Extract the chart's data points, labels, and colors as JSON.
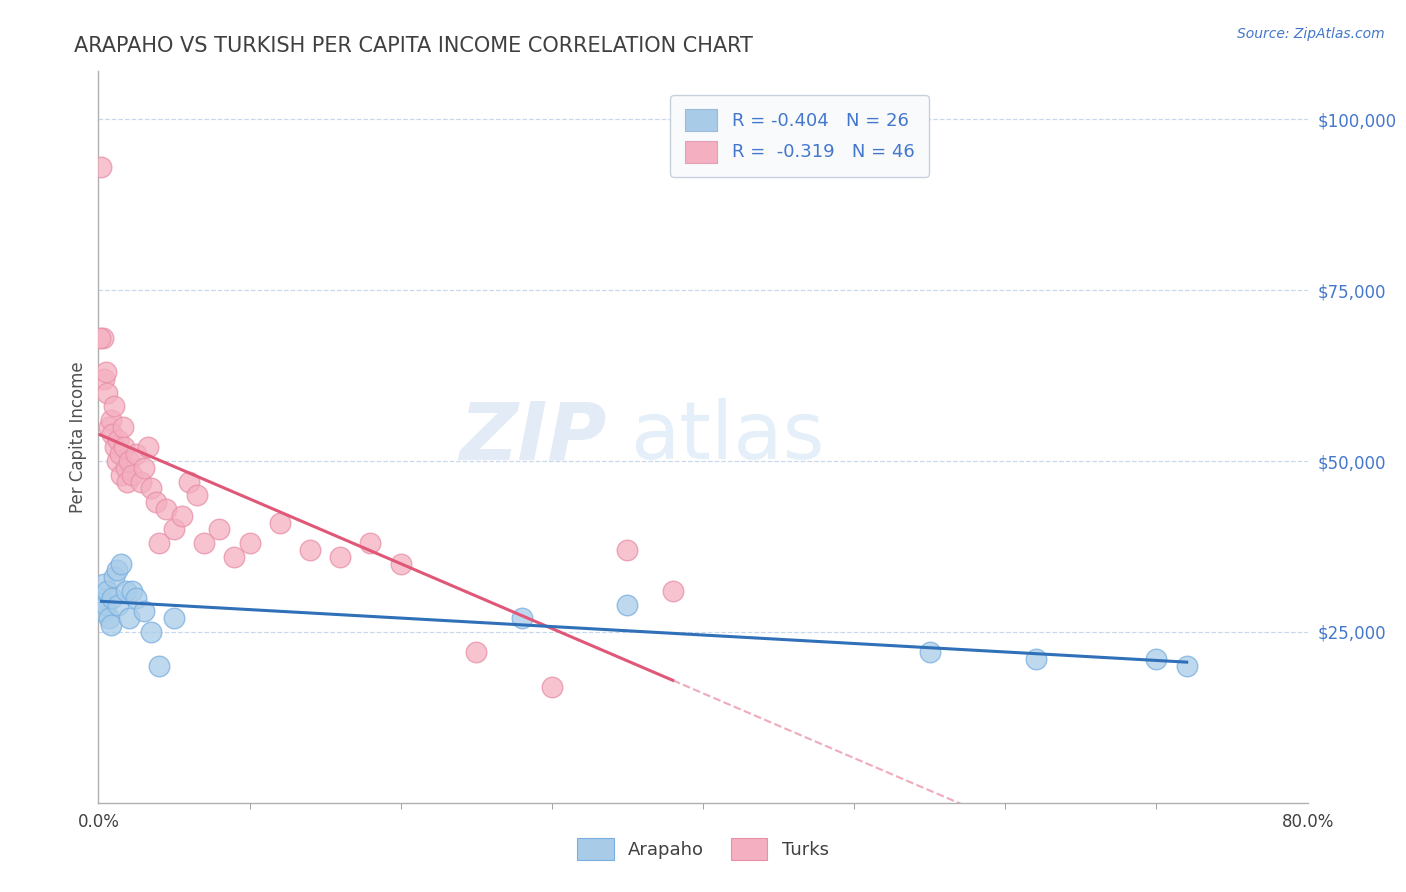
{
  "title": "ARAPAHO VS TURKISH PER CAPITA INCOME CORRELATION CHART",
  "source_text": "Source: ZipAtlas.com",
  "ylabel": "Per Capita Income",
  "xlabel": "",
  "xlim": [
    0.0,
    0.8
  ],
  "ylim": [
    0,
    107000
  ],
  "arapaho_color": "#a8cce8",
  "turks_color": "#f4afc0",
  "arapaho_edge_color": "#7aafe0",
  "turks_edge_color": "#e890a8",
  "arapaho_line_color": "#3070b8",
  "turks_line_color": "#e05878",
  "title_color": "#404040",
  "axis_color": "#4477cc",
  "background_color": "#ffffff",
  "grid_color": "#c8d8ec",
  "arapaho_x": [
    0.002,
    0.003,
    0.004,
    0.005,
    0.006,
    0.007,
    0.008,
    0.009,
    0.01,
    0.012,
    0.013,
    0.015,
    0.018,
    0.02,
    0.022,
    0.025,
    0.03,
    0.035,
    0.04,
    0.05,
    0.28,
    0.35,
    0.55,
    0.62,
    0.7,
    0.72
  ],
  "arapaho_y": [
    30000,
    28000,
    32000,
    29000,
    31000,
    27000,
    26000,
    30000,
    33000,
    34000,
    29000,
    35000,
    31000,
    27000,
    31000,
    30000,
    28000,
    25000,
    20000,
    27000,
    27000,
    29000,
    22000,
    21000,
    21000,
    20000
  ],
  "turks_x": [
    0.003,
    0.004,
    0.005,
    0.006,
    0.007,
    0.008,
    0.009,
    0.01,
    0.011,
    0.012,
    0.013,
    0.014,
    0.015,
    0.016,
    0.017,
    0.018,
    0.019,
    0.02,
    0.022,
    0.025,
    0.028,
    0.03,
    0.033,
    0.035,
    0.038,
    0.04,
    0.045,
    0.05,
    0.055,
    0.06,
    0.065,
    0.07,
    0.08,
    0.09,
    0.1,
    0.12,
    0.14,
    0.16,
    0.18,
    0.2,
    0.25,
    0.3,
    0.35,
    0.38,
    0.002,
    0.001
  ],
  "turks_y": [
    68000,
    62000,
    63000,
    60000,
    55000,
    56000,
    54000,
    58000,
    52000,
    50000,
    53000,
    51000,
    48000,
    55000,
    52000,
    49000,
    47000,
    50000,
    48000,
    51000,
    47000,
    49000,
    52000,
    46000,
    44000,
    38000,
    43000,
    40000,
    42000,
    47000,
    45000,
    38000,
    40000,
    36000,
    38000,
    41000,
    37000,
    36000,
    38000,
    35000,
    22000,
    17000,
    37000,
    31000,
    93000,
    68000
  ],
  "R_arapaho": -0.404,
  "N_arapaho": 26,
  "R_turks": -0.319,
  "N_turks": 46
}
